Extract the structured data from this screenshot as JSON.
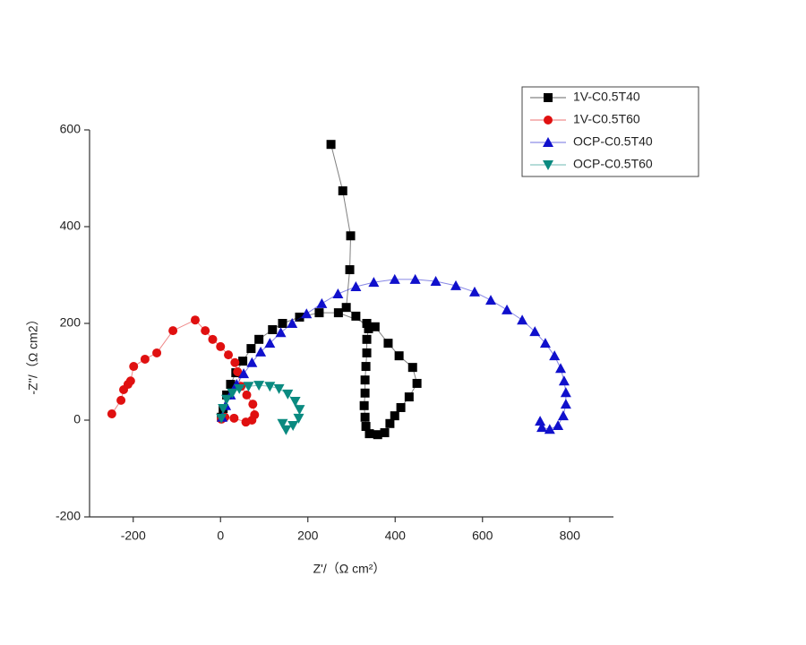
{
  "chart_data": {
    "type": "scatter",
    "xlabel": "Z'/（Ω  cm²）",
    "ylabel": "-Z''/（Ω  cm2）",
    "xlim": [
      -300,
      900
    ],
    "ylim": [
      -200,
      600
    ],
    "xticks": [
      -200,
      0,
      200,
      400,
      600,
      800
    ],
    "yticks": [
      -200,
      0,
      200,
      400,
      600
    ],
    "legend": "upper right",
    "series": [
      {
        "name": "1V-C0.5T40",
        "color": "#000000",
        "marker": "square",
        "x": [
          2,
          6,
          14,
          23,
          35,
          51,
          70,
          88,
          119,
          142,
          181,
          226,
          270,
          335,
          354,
          384,
          409,
          440,
          450,
          432,
          413,
          399,
          388,
          376,
          360,
          341,
          333,
          331,
          329,
          331,
          331,
          333,
          335,
          335,
          339,
          310,
          288,
          296,
          298,
          280,
          253
        ],
        "values": [
          6,
          24,
          52,
          74,
          98,
          122,
          148,
          167,
          187,
          200,
          213,
          222,
          222,
          200,
          193,
          159,
          133,
          109,
          76,
          48,
          26,
          9,
          -7,
          -26,
          -30,
          -28,
          -13,
          6,
          30,
          56,
          83,
          111,
          139,
          167,
          189,
          215,
          233,
          311,
          381,
          474,
          570
        ]
      },
      {
        "name": "1V-C0.5T60",
        "color": "#e01010",
        "marker": "circle",
        "x": [
          -249,
          -228,
          -222,
          -212,
          -206,
          -199,
          -173,
          -146,
          -109,
          -58,
          -35,
          -18,
          0,
          18,
          33,
          39,
          47,
          60,
          74,
          78,
          72,
          58,
          31,
          10,
          2
        ],
        "values": [
          13,
          41,
          63,
          74,
          81,
          111,
          126,
          139,
          185,
          207,
          185,
          167,
          152,
          135,
          119,
          100,
          70,
          52,
          33,
          11,
          0,
          -4,
          4,
          6,
          2
        ]
      },
      {
        "name": "OCP-C0.5T40",
        "color": "#1010cc",
        "marker": "triangle",
        "x": [
          4,
          12,
          23,
          37,
          53,
          72,
          92,
          113,
          138,
          164,
          197,
          232,
          269,
          310,
          351,
          399,
          446,
          493,
          539,
          582,
          619,
          656,
          691,
          720,
          744,
          765,
          779,
          787,
          791,
          791,
          785,
          773,
          754,
          736,
          732
        ],
        "values": [
          6,
          30,
          52,
          74,
          96,
          119,
          141,
          159,
          181,
          200,
          220,
          241,
          261,
          276,
          285,
          291,
          291,
          287,
          278,
          265,
          248,
          228,
          207,
          183,
          159,
          133,
          107,
          81,
          57,
          33,
          9,
          -11,
          -19,
          -15,
          -2
        ]
      },
      {
        "name": "OCP-C0.5T60",
        "color": "#0a8a80",
        "marker": "triangle-down",
        "x": [
          2,
          6,
          14,
          27,
          43,
          64,
          88,
          113,
          134,
          154,
          171,
          181,
          179,
          166,
          150,
          142
        ],
        "values": [
          4,
          24,
          43,
          56,
          65,
          70,
          72,
          70,
          65,
          54,
          39,
          22,
          4,
          -11,
          -20,
          -7
        ]
      }
    ]
  }
}
